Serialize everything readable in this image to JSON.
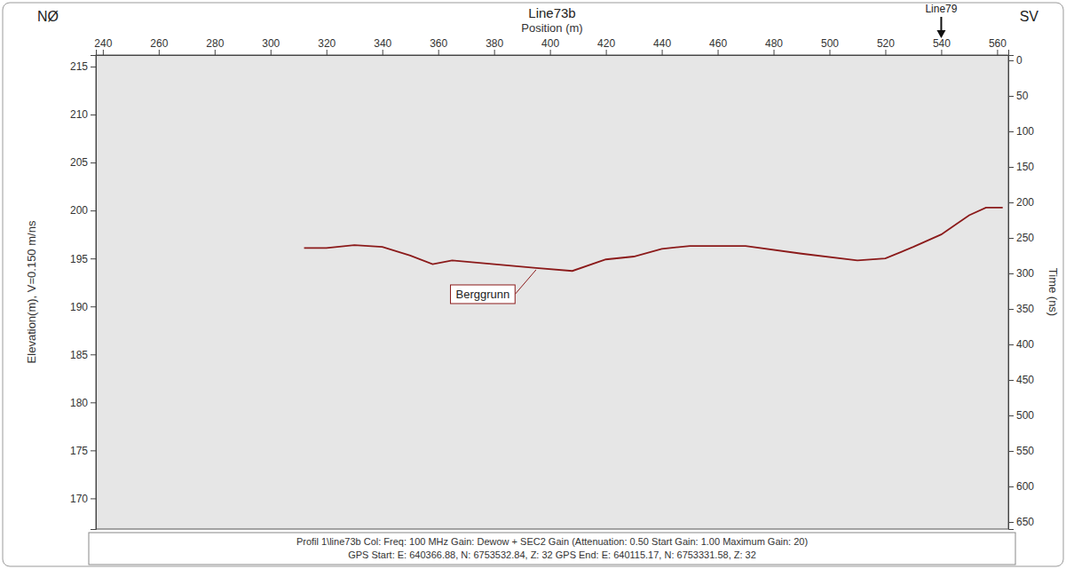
{
  "chart_data": {
    "type": "line",
    "title": "Line73b",
    "left_label": "NØ",
    "right_label": "SV",
    "x_label": "Position (m)",
    "y_label": "Elevation(m), V=0.150 m/ns",
    "y2_label": "Time (ns)",
    "xlim": [
      237.5,
      564
    ],
    "xticks": [
      240,
      260,
      280,
      300,
      320,
      340,
      360,
      380,
      400,
      420,
      440,
      460,
      480,
      500,
      520,
      540,
      560
    ],
    "ylim": [
      166.8,
      216.2
    ],
    "yticks": [
      170,
      175,
      180,
      185,
      190,
      195,
      200,
      205,
      210,
      215
    ],
    "y2lim": [
      -7.5,
      660
    ],
    "y2ticks": [
      0,
      50,
      100,
      150,
      200,
      250,
      300,
      350,
      400,
      450,
      500,
      550,
      600,
      650
    ],
    "x": [
      312,
      320,
      330,
      340,
      350,
      358,
      365,
      380,
      395,
      408,
      420,
      430,
      440,
      450,
      470,
      490,
      510,
      520,
      530,
      540,
      550,
      556,
      562
    ],
    "series": [
      {
        "name": "Berggrunn",
        "color": "#8b1a1a",
        "values": [
          196.1,
          196.1,
          196.4,
          196.2,
          195.3,
          194.4,
          194.8,
          194.4,
          194.0,
          193.7,
          194.9,
          195.2,
          196.0,
          196.3,
          196.3,
          195.5,
          194.8,
          195.0,
          196.2,
          197.5,
          199.5,
          200.3,
          200.3
        ]
      }
    ],
    "annotations": [
      {
        "text": "Line79",
        "x": 540
      }
    ],
    "footer": [
      "Profil 1\\line73b  Col:  Freq: 100 MHz Gain: Dewow + SEC2 Gain (Attenuation: 0.50 Start Gain: 1.00 Maximum Gain: 20)",
      "GPS Start: E: 640366.88, N: 6753532.84, Z: 32 GPS End: E: 640115.17, N: 6753331.58, Z: 32"
    ]
  }
}
